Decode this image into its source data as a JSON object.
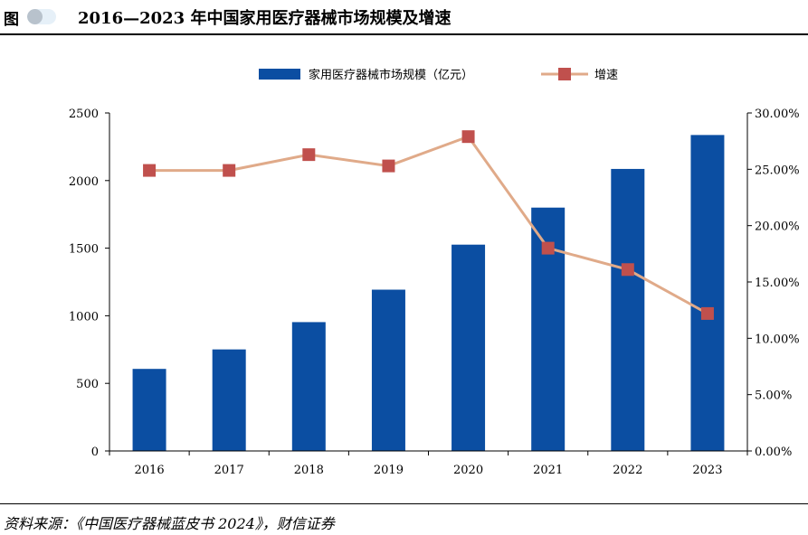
{
  "header": {
    "fig_label": "图",
    "title": "2016—2023 年中国家用医疗器械市场规模及增速"
  },
  "footer": {
    "source": "资料来源：《中国医疗器械蓝皮书 2024》，财信证券"
  },
  "chart_data": {
    "type": "bar",
    "categories": [
      "2016",
      "2017",
      "2018",
      "2019",
      "2020",
      "2021",
      "2022",
      "2023"
    ],
    "series": [
      {
        "name": "家用医疗器械市场规模（亿元）",
        "type": "bar",
        "axis": "left",
        "color": "#0b4ea2",
        "values": [
          607,
          751,
          953,
          1193,
          1526,
          1800,
          2086,
          2337
        ]
      },
      {
        "name": "增速",
        "type": "line",
        "axis": "right",
        "color": "#e0aa89",
        "marker_color": "#c0504d",
        "values": [
          24.9,
          24.9,
          26.3,
          25.3,
          27.9,
          18.0,
          16.1,
          12.2
        ]
      }
    ],
    "y_left": {
      "ylim": [
        0,
        2500
      ],
      "ticks": [
        "0",
        "500",
        "1000",
        "1500",
        "2000",
        "2500"
      ]
    },
    "y_right": {
      "ylim": [
        0,
        30
      ],
      "ticks": [
        "0.00%",
        "5.00%",
        "10.00%",
        "15.00%",
        "20.00%",
        "25.00%",
        "30.00%"
      ]
    },
    "grid": false,
    "legend_position": "top-center"
  }
}
